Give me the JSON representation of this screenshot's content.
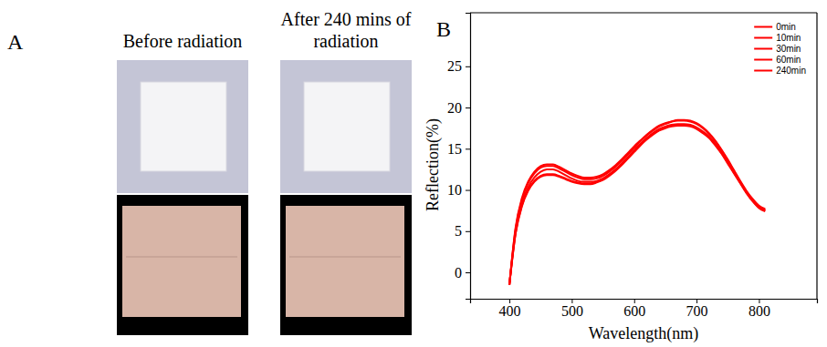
{
  "figure": {
    "panel_a": {
      "letter": "A",
      "captions": [
        "Before radiation",
        "After 240 mins of radiation"
      ]
    },
    "panel_b_letter": "B"
  },
  "chart_data": {
    "type": "line",
    "x_label": "Wavelength(nm)",
    "y_label": "Reflection(%)",
    "xlim": [
      337,
      893
    ],
    "xticks": [
      400,
      500,
      600,
      700,
      800
    ],
    "ylim": [
      -3.2,
      31.5
    ],
    "yticks": [
      0,
      5,
      10,
      15,
      20,
      25
    ],
    "grid": false,
    "legend": "upper right",
    "x": [
      400,
      410,
      420,
      430,
      440,
      450,
      460,
      470,
      480,
      490,
      500,
      510,
      520,
      530,
      540,
      550,
      560,
      570,
      580,
      590,
      600,
      610,
      620,
      630,
      640,
      650,
      660,
      670,
      680,
      690,
      700,
      710,
      720,
      730,
      740,
      750,
      760,
      770,
      780,
      790,
      800,
      810
    ],
    "series": [
      {
        "name": "0min",
        "color": "#ff0000",
        "values": [
          -1.5,
          5.5,
          9.0,
          11.0,
          12.2,
          12.9,
          13.1,
          13.1,
          12.8,
          12.4,
          12.0,
          11.7,
          11.5,
          11.5,
          11.6,
          11.9,
          12.4,
          13.0,
          13.7,
          14.5,
          15.3,
          16.0,
          16.7,
          17.3,
          17.8,
          18.1,
          18.3,
          18.4,
          18.4,
          18.3,
          18.0,
          17.5,
          16.8,
          15.9,
          14.8,
          13.6,
          12.3,
          11.0,
          9.8,
          8.8,
          8.0,
          7.6
        ]
      },
      {
        "name": "10min",
        "color": "#ff0000",
        "values": [
          -1.5,
          5.3,
          8.8,
          10.8,
          12.0,
          12.7,
          12.9,
          12.9,
          12.6,
          12.2,
          11.8,
          11.5,
          11.3,
          11.3,
          11.4,
          11.7,
          12.2,
          12.8,
          13.5,
          14.3,
          15.1,
          15.9,
          16.6,
          17.2,
          17.7,
          18.0,
          18.3,
          18.5,
          18.5,
          18.4,
          18.1,
          17.6,
          16.9,
          16.0,
          14.9,
          13.7,
          12.4,
          11.1,
          9.9,
          8.9,
          8.1,
          7.7
        ]
      },
      {
        "name": "30min",
        "color": "#ff0000",
        "values": [
          -1.5,
          5.0,
          8.4,
          10.3,
          11.5,
          12.2,
          12.5,
          12.5,
          12.2,
          11.8,
          11.4,
          11.1,
          11.0,
          11.0,
          11.1,
          11.4,
          11.9,
          12.5,
          13.2,
          14.0,
          14.8,
          15.6,
          16.3,
          16.9,
          17.4,
          17.7,
          17.9,
          18.0,
          18.0,
          17.9,
          17.6,
          17.1,
          16.5,
          15.6,
          14.6,
          13.4,
          12.1,
          10.9,
          9.7,
          8.7,
          7.9,
          7.5
        ]
      },
      {
        "name": "60min",
        "color": "#ff0000",
        "values": [
          -1.5,
          4.7,
          8.0,
          9.9,
          11.0,
          11.6,
          11.8,
          11.8,
          11.6,
          11.3,
          11.0,
          10.8,
          10.7,
          10.7,
          10.9,
          11.2,
          11.7,
          12.3,
          13.0,
          13.8,
          14.6,
          15.4,
          16.1,
          16.7,
          17.2,
          17.5,
          17.7,
          17.8,
          17.8,
          17.7,
          17.4,
          16.9,
          16.3,
          15.4,
          14.4,
          13.2,
          12.0,
          10.8,
          9.6,
          8.6,
          7.8,
          7.4
        ]
      },
      {
        "name": "240min",
        "color": "#ff0000",
        "values": [
          -1.5,
          4.8,
          8.1,
          10.0,
          11.1,
          11.7,
          11.9,
          11.9,
          11.7,
          11.4,
          11.1,
          10.9,
          10.8,
          10.8,
          11.0,
          11.3,
          11.8,
          12.4,
          13.1,
          13.9,
          14.7,
          15.5,
          16.2,
          16.8,
          17.3,
          17.6,
          17.8,
          17.9,
          17.9,
          17.8,
          17.5,
          17.0,
          16.4,
          15.5,
          14.5,
          13.3,
          12.1,
          10.9,
          9.7,
          8.7,
          7.9,
          7.5
        ]
      }
    ]
  }
}
